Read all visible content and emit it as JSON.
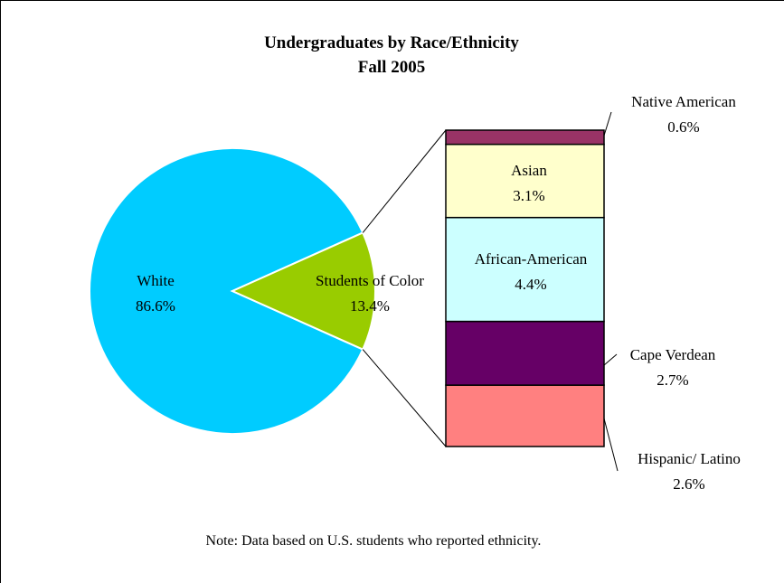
{
  "chart_data": {
    "type": "pie",
    "title": "Undergraduates by Race/Ethnicity",
    "subtitle": "Fall 2005",
    "pie": {
      "slices": [
        {
          "name": "White",
          "label": "White",
          "value_label": "86.6%",
          "value": 86.6,
          "color": "#00CCFF"
        },
        {
          "name": "Students of Color",
          "label": "Students of Color",
          "value_label": "13.4%",
          "value": 13.4,
          "color": "#99CC00"
        }
      ]
    },
    "breakdown": {
      "of": "Students of Color",
      "segments": [
        {
          "name": "Hispanic/ Latino",
          "label": "Hispanic/ Latino",
          "value_label": "2.6%",
          "value": 2.6,
          "color": "#FF8080"
        },
        {
          "name": "Cape Verdean",
          "label": "Cape Verdean",
          "value_label": "2.7%",
          "value": 2.7,
          "color": "#660066"
        },
        {
          "name": "African-American",
          "label": "African-American",
          "value_label": "4.4%",
          "value": 4.4,
          "color": "#CCFFFF"
        },
        {
          "name": "Asian",
          "label": "Asian",
          "value_label": "3.1%",
          "value": 3.1,
          "color": "#FFFFCC"
        },
        {
          "name": "Native American",
          "label": "Native American",
          "value_label": "0.6%",
          "value": 0.6,
          "color": "#993366"
        }
      ]
    },
    "note": "Note:  Data based on U.S. students who reported ethnicity."
  }
}
